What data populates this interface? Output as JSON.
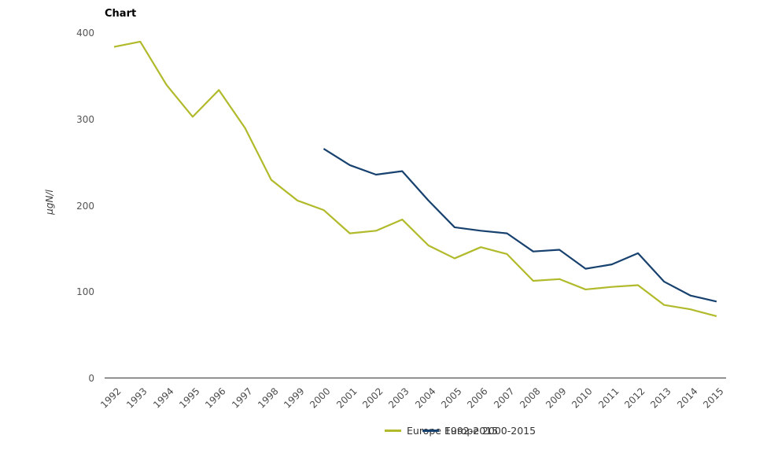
{
  "chart_data": {
    "type": "line",
    "title": "Chart",
    "ylabel": "µgN/l",
    "xlabel": "",
    "ylim": [
      0,
      400
    ],
    "yticks": [
      0,
      100,
      200,
      300,
      400
    ],
    "grid": false,
    "legend_position": "bottom-center",
    "x": [
      1992,
      1993,
      1994,
      1995,
      1996,
      1997,
      1998,
      1999,
      2000,
      2001,
      2002,
      2003,
      2004,
      2005,
      2006,
      2007,
      2008,
      2009,
      2010,
      2011,
      2012,
      2013,
      2014,
      2015
    ],
    "series": [
      {
        "name": "Europe 1992-2015",
        "color": "#b1ba2b",
        "start_year": 1992,
        "values": [
          384,
          390,
          340,
          303,
          334,
          290,
          230,
          206,
          195,
          168,
          171,
          184,
          154,
          139,
          152,
          144,
          113,
          115,
          103,
          106,
          108,
          85,
          80,
          72
        ]
      },
      {
        "name": "Europe 2000-2015",
        "color": "#17416e",
        "start_year": 2000,
        "values": [
          266,
          247,
          236,
          240,
          206,
          175,
          171,
          168,
          147,
          149,
          127,
          132,
          145,
          112,
          96,
          89
        ]
      }
    ]
  }
}
